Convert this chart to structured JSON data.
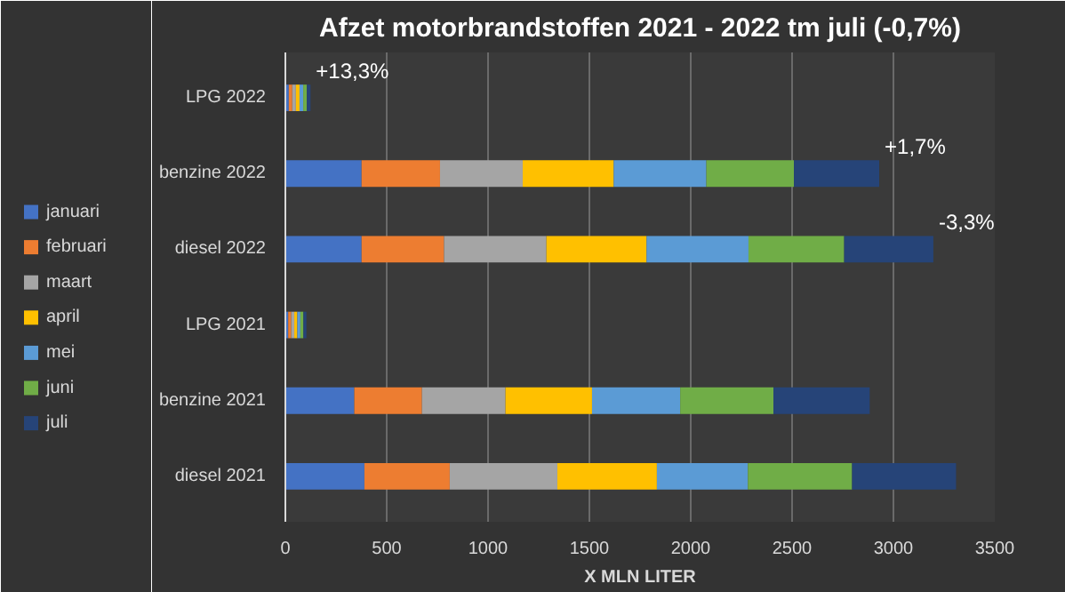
{
  "chart_data": {
    "type": "bar",
    "orientation": "horizontal",
    "stacked": true,
    "title": "Afzet motorbrandstoffen 2021 - 2022 tm juli (-0,7%)",
    "xlabel": "X MLN LITER",
    "categories": [
      "LPG 2022",
      "benzine 2022",
      "diesel 2022",
      "LPG 2021",
      "benzine 2021",
      "diesel 2021"
    ],
    "series": [
      {
        "name": "januari",
        "color": "#4472c4",
        "values": [
          17,
          376,
          376,
          14,
          340,
          390
        ]
      },
      {
        "name": "februari",
        "color": "#ed7d31",
        "values": [
          17,
          387,
          407,
          15,
          334,
          421
        ]
      },
      {
        "name": "maart",
        "color": "#a5a5a5",
        "values": [
          18,
          408,
          505,
          15,
          412,
          531
        ]
      },
      {
        "name": "april",
        "color": "#ffc000",
        "values": [
          18,
          449,
          494,
          15,
          427,
          491
        ]
      },
      {
        "name": "mei",
        "color": "#5b9bd5",
        "values": [
          18,
          457,
          503,
          15,
          435,
          449
        ]
      },
      {
        "name": "juni",
        "color": "#70ad47",
        "values": [
          18,
          432,
          472,
          15,
          460,
          514
        ]
      },
      {
        "name": "juli",
        "color": "#264478",
        "values": [
          18,
          421,
          440,
          15,
          475,
          513
        ]
      }
    ],
    "xlim": [
      0,
      3500
    ],
    "xticks": [
      0,
      500,
      1000,
      1500,
      2000,
      2500,
      3000,
      3500
    ],
    "grid": "x",
    "legend": "left",
    "annotations": [
      {
        "text": "+13,3%",
        "x": 124,
        "y": "LPG 2022"
      },
      {
        "text": "+1,7%",
        "x": 2930,
        "y": "benzine 2022"
      },
      {
        "text": "-3,3%",
        "x": 3197,
        "y": "diesel 2022"
      }
    ]
  }
}
